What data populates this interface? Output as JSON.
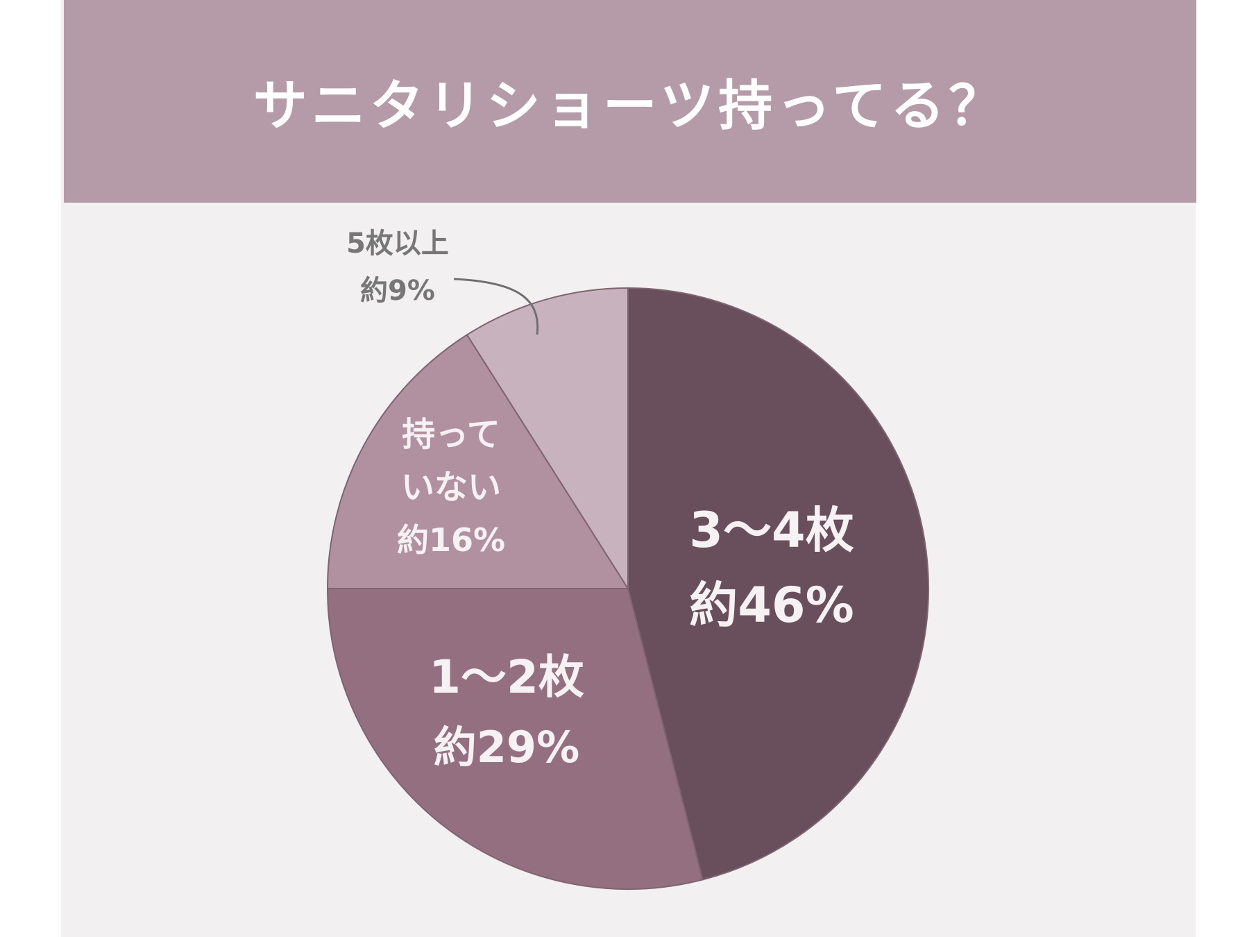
{
  "header": {
    "title": "サニタリショーツ持ってる？"
  },
  "colors": {
    "header_bg": "#b59aa8",
    "panel_bg": "#f3f0f1",
    "slices": [
      "#694f5c",
      "#946f80",
      "#b1909f",
      "#c8b2bd"
    ],
    "label_light": "#f6f1f3",
    "label_dark": "#777777"
  },
  "chart_data": {
    "type": "pie",
    "title": "サニタリショーツ持ってる？",
    "slices": [
      {
        "label_lines": [
          "3〜4枚"
        ],
        "value_label": "約46%",
        "value": 46
      },
      {
        "label_lines": [
          "1〜2枚"
        ],
        "value_label": "約29%",
        "value": 29
      },
      {
        "label_lines": [
          "持って",
          "いない"
        ],
        "value_label": "約16%",
        "value": 16
      },
      {
        "label_lines": [
          "5枚以上"
        ],
        "value_label": "約9%",
        "value": 9
      }
    ],
    "start_angle": "12 o'clock",
    "direction": "clockwise"
  }
}
